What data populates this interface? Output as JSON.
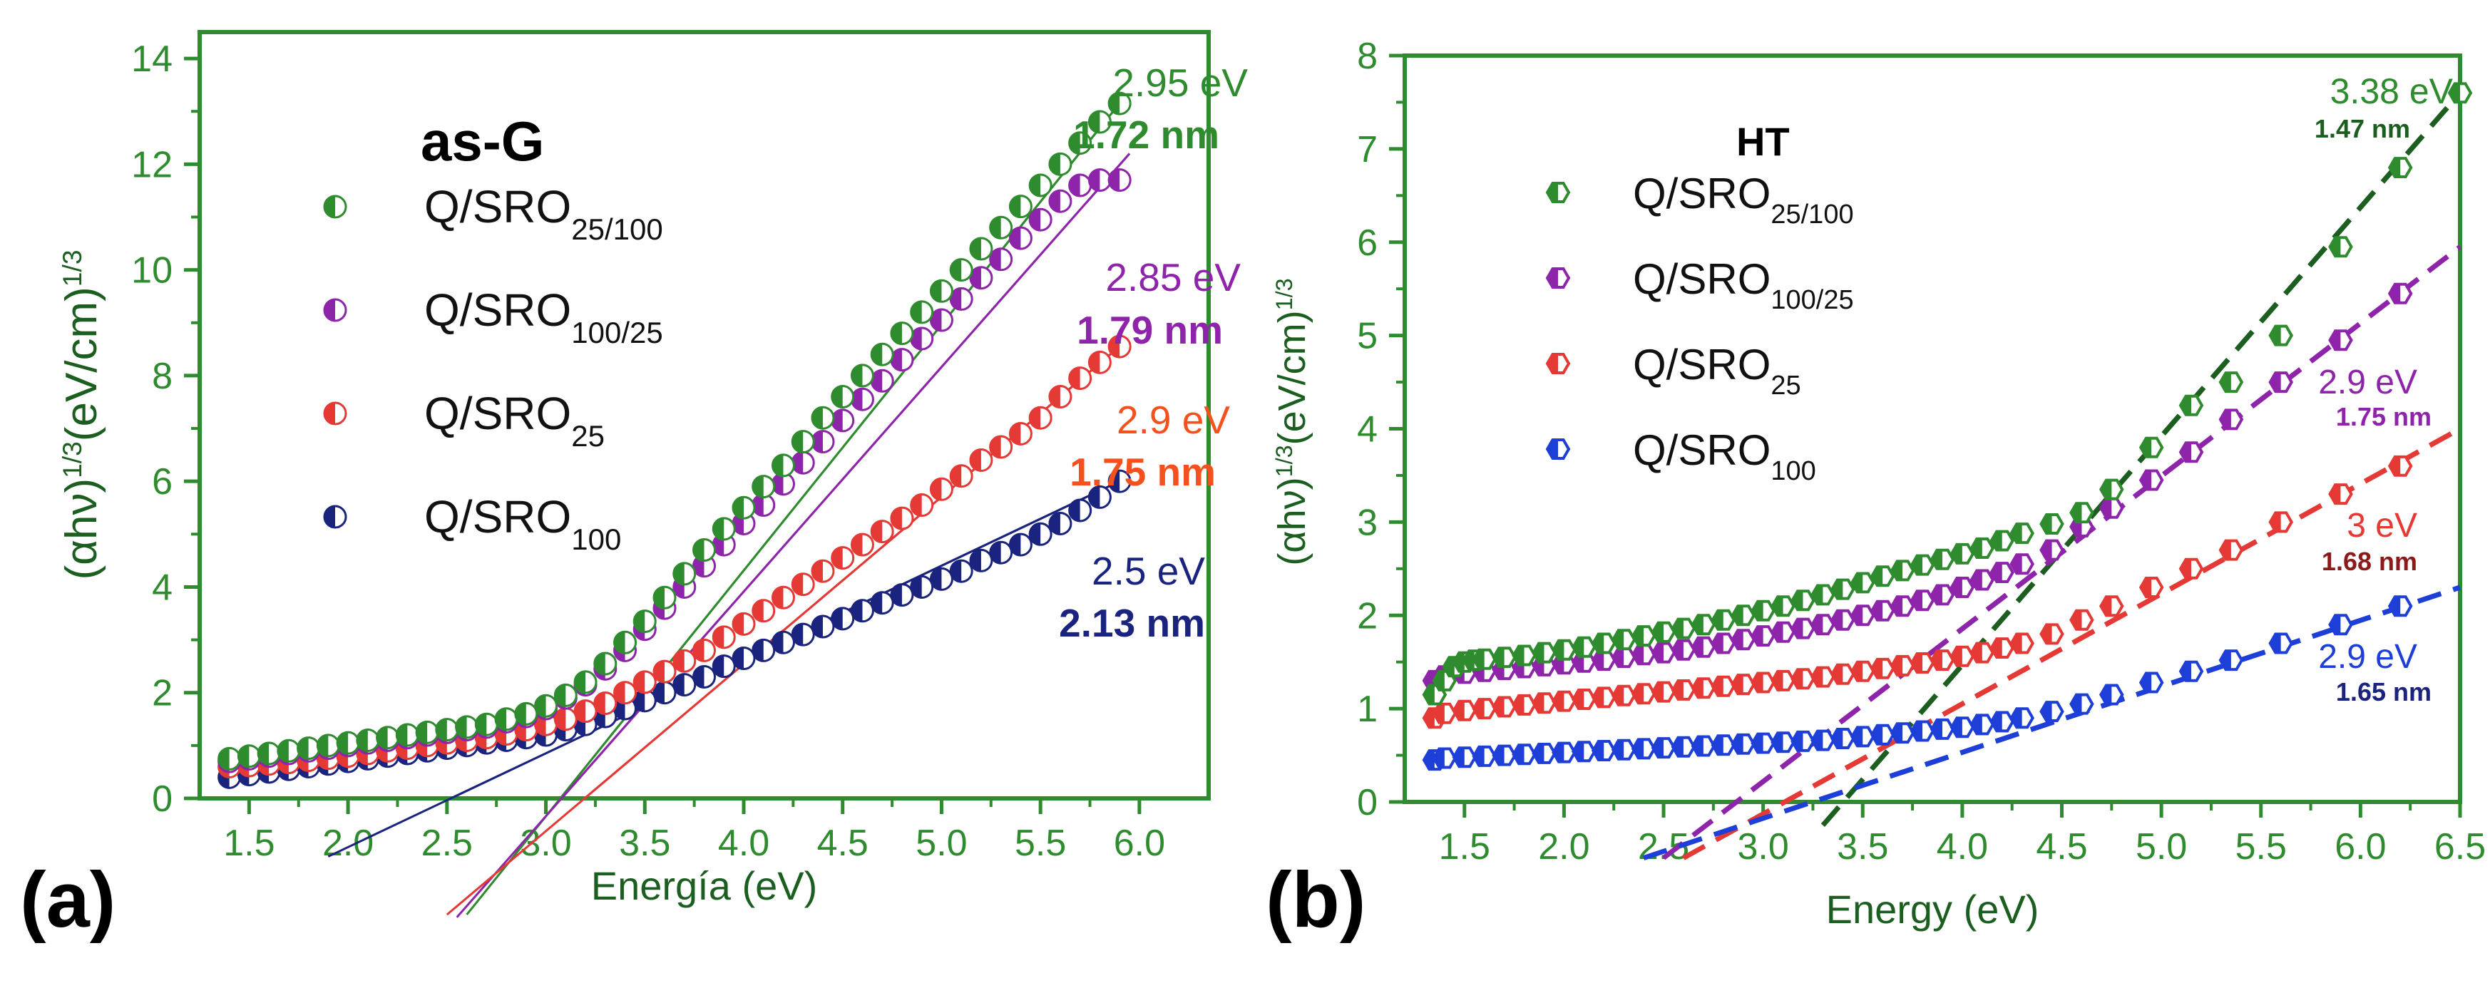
{
  "figure": {
    "panel_a_label": "(a)",
    "panel_b_label": "(b)"
  },
  "chart_data": [
    {
      "type": "scatter",
      "panel": "(a)",
      "title": "as-G",
      "xlabel": "Energía (eV)",
      "ylabel": "(αhν)1/3(eV/cm)1/3",
      "ylabel_parts": {
        "base": "(αhν)",
        "sup1": "1/3",
        "mid": "(eV/cm)",
        "sup2": "1/3"
      },
      "xlim": [
        1.25,
        6.35
      ],
      "ylim": [
        0,
        14.5
      ],
      "xticks": [
        1.5,
        2.0,
        2.5,
        3.0,
        3.5,
        4.0,
        4.5,
        5.0,
        5.5,
        6.0
      ],
      "xtick_labels": [
        "1.5",
        "2.0",
        "2.5",
        "3.0",
        "3.5",
        "4.0",
        "4.5",
        "5.0",
        "5.5",
        "6.0"
      ],
      "yticks": [
        0,
        2,
        4,
        6,
        8,
        10,
        12,
        14
      ],
      "ytick_labels": [
        "0",
        "2",
        "4",
        "6",
        "8",
        "10",
        "12",
        "14"
      ],
      "legend_position": "top-left",
      "axis_color": "#2e8b2e",
      "series": [
        {
          "name": "Q/SRO25/100",
          "label_base": "Q/SRO",
          "label_sub": "25/100",
          "color": "#2e8b2e",
          "x": [
            1.4,
            1.5,
            1.6,
            1.7,
            1.8,
            1.9,
            2.0,
            2.1,
            2.2,
            2.3,
            2.4,
            2.5,
            2.6,
            2.7,
            2.8,
            2.9,
            3.0,
            3.1,
            3.2,
            3.3,
            3.4,
            3.5,
            3.6,
            3.7,
            3.8,
            3.9,
            4.0,
            4.1,
            4.2,
            4.3,
            4.4,
            4.5,
            4.6,
            4.7,
            4.8,
            4.9,
            5.0,
            5.1,
            5.2,
            5.3,
            5.4,
            5.5,
            5.6,
            5.7,
            5.8,
            5.9
          ],
          "y": [
            0.75,
            0.8,
            0.85,
            0.9,
            0.95,
            1.0,
            1.05,
            1.1,
            1.15,
            1.2,
            1.25,
            1.3,
            1.35,
            1.4,
            1.5,
            1.6,
            1.75,
            1.95,
            2.2,
            2.55,
            2.95,
            3.35,
            3.8,
            4.25,
            4.7,
            5.1,
            5.5,
            5.9,
            6.3,
            6.75,
            7.2,
            7.6,
            8.0,
            8.4,
            8.8,
            9.2,
            9.6,
            10.0,
            10.4,
            10.8,
            11.2,
            11.6,
            12.0,
            12.4,
            12.8,
            13.15
          ]
        },
        {
          "name": "Q/SRO100/25",
          "label_base": "Q/SRO",
          "label_sub": "100/25",
          "color": "#8e24aa",
          "x": [
            1.4,
            1.5,
            1.6,
            1.7,
            1.8,
            1.9,
            2.0,
            2.1,
            2.2,
            2.3,
            2.4,
            2.5,
            2.6,
            2.7,
            2.8,
            2.9,
            3.0,
            3.1,
            3.2,
            3.3,
            3.4,
            3.5,
            3.6,
            3.7,
            3.8,
            3.9,
            4.0,
            4.1,
            4.2,
            4.3,
            4.4,
            4.5,
            4.6,
            4.7,
            4.8,
            4.9,
            5.0,
            5.1,
            5.2,
            5.3,
            5.4,
            5.5,
            5.6,
            5.7,
            5.8,
            5.9
          ],
          "y": [
            0.7,
            0.75,
            0.8,
            0.85,
            0.9,
            0.95,
            1.0,
            1.05,
            1.1,
            1.15,
            1.2,
            1.25,
            1.3,
            1.35,
            1.45,
            1.55,
            1.7,
            1.9,
            2.15,
            2.45,
            2.8,
            3.2,
            3.6,
            4.0,
            4.4,
            4.8,
            5.2,
            5.55,
            5.95,
            6.35,
            6.75,
            7.15,
            7.55,
            7.9,
            8.3,
            8.7,
            9.05,
            9.45,
            9.85,
            10.2,
            10.6,
            10.95,
            11.3,
            11.6,
            11.7,
            11.7
          ]
        },
        {
          "name": "Q/SRO25",
          "label_base": "Q/SRO",
          "label_sub": "25",
          "color": "#e53935",
          "x": [
            1.4,
            1.5,
            1.6,
            1.7,
            1.8,
            1.9,
            2.0,
            2.1,
            2.2,
            2.3,
            2.4,
            2.5,
            2.6,
            2.7,
            2.8,
            2.9,
            3.0,
            3.1,
            3.2,
            3.3,
            3.4,
            3.5,
            3.6,
            3.7,
            3.8,
            3.9,
            4.0,
            4.1,
            4.2,
            4.3,
            4.4,
            4.5,
            4.6,
            4.7,
            4.8,
            4.9,
            5.0,
            5.1,
            5.2,
            5.3,
            5.4,
            5.5,
            5.6,
            5.7,
            5.8,
            5.9
          ],
          "y": [
            0.6,
            0.62,
            0.65,
            0.68,
            0.72,
            0.76,
            0.8,
            0.85,
            0.9,
            0.95,
            1.0,
            1.05,
            1.1,
            1.15,
            1.22,
            1.3,
            1.4,
            1.5,
            1.65,
            1.8,
            2.0,
            2.2,
            2.4,
            2.6,
            2.8,
            3.05,
            3.3,
            3.55,
            3.8,
            4.05,
            4.3,
            4.55,
            4.8,
            5.05,
            5.3,
            5.55,
            5.85,
            6.1,
            6.4,
            6.65,
            6.9,
            7.2,
            7.6,
            7.95,
            8.25,
            8.55
          ]
        },
        {
          "name": "Q/SRO100",
          "label_base": "Q/SRO",
          "label_sub": "100",
          "color": "#1a237e",
          "x": [
            1.4,
            1.5,
            1.6,
            1.7,
            1.8,
            1.9,
            2.0,
            2.1,
            2.2,
            2.3,
            2.4,
            2.5,
            2.6,
            2.7,
            2.8,
            2.9,
            3.0,
            3.1,
            3.2,
            3.3,
            3.4,
            3.5,
            3.6,
            3.7,
            3.8,
            3.9,
            4.0,
            4.1,
            4.2,
            4.3,
            4.4,
            4.5,
            4.6,
            4.7,
            4.8,
            4.9,
            5.0,
            5.1,
            5.2,
            5.3,
            5.4,
            5.5,
            5.6,
            5.7,
            5.8,
            5.9
          ],
          "y": [
            0.4,
            0.45,
            0.5,
            0.55,
            0.6,
            0.65,
            0.7,
            0.75,
            0.8,
            0.85,
            0.9,
            0.95,
            1.0,
            1.05,
            1.1,
            1.15,
            1.2,
            1.3,
            1.4,
            1.55,
            1.7,
            1.85,
            2.0,
            2.15,
            2.3,
            2.5,
            2.65,
            2.8,
            2.95,
            3.1,
            3.25,
            3.4,
            3.55,
            3.7,
            3.85,
            4.0,
            4.15,
            4.3,
            4.5,
            4.65,
            4.8,
            5.0,
            5.2,
            5.45,
            5.7,
            6.0
          ]
        }
      ],
      "fit_lines": [
        {
          "color": "#2e8b2e",
          "x": [
            2.6,
            5.9
          ],
          "y": [
            -2.2,
            13.15
          ]
        },
        {
          "color": "#8e24aa",
          "x": [
            2.55,
            5.95
          ],
          "y": [
            -2.25,
            12.2
          ]
        },
        {
          "color": "#e53935",
          "x": [
            2.5,
            5.9
          ],
          "y": [
            -2.2,
            8.55
          ]
        },
        {
          "color": "#1a237e",
          "x": [
            1.9,
            5.9
          ],
          "y": [
            -1.1,
            6.0
          ]
        }
      ],
      "annotations": [
        {
          "text": "2.95 eV",
          "color": "#2e8b2e",
          "bold": false
        },
        {
          "text": "1.72 nm",
          "color": "#2e8b2e",
          "bold": true
        },
        {
          "text": "2.85 eV",
          "color": "#8e24aa",
          "bold": false
        },
        {
          "text": "1.79 nm",
          "color": "#8e24aa",
          "bold": true
        },
        {
          "text": "2.9 eV",
          "color": "#f4511e",
          "bold": false
        },
        {
          "text": "1.75 nm",
          "color": "#f4511e",
          "bold": true
        },
        {
          "text": "2.5 eV",
          "color": "#1a237e",
          "bold": false
        },
        {
          "text": "2.13 nm",
          "color": "#1a237e",
          "bold": true
        }
      ]
    },
    {
      "type": "scatter",
      "panel": "(b)",
      "title": "HT",
      "xlabel": "Energy (eV)",
      "ylabel": "(αhν)1/3(eV/cm)1/3",
      "ylabel_parts": {
        "base": "(αhν)",
        "sup1": "1/3",
        "mid": "(eV/cm)",
        "sup2": "1/3"
      },
      "xlim": [
        1.2,
        6.5
      ],
      "ylim": [
        0,
        8
      ],
      "xticks": [
        1.5,
        2.0,
        2.5,
        3.0,
        3.5,
        4.0,
        4.5,
        5.0,
        5.5,
        6.0,
        6.5
      ],
      "xtick_labels": [
        "1.5",
        "2.0",
        "2.5",
        "3.0",
        "3.5",
        "4.0",
        "4.5",
        "5.0",
        "5.5",
        "6.0",
        "6.5"
      ],
      "yticks": [
        0,
        1,
        2,
        3,
        4,
        5,
        6,
        7,
        8
      ],
      "ytick_labels": [
        "0",
        "1",
        "2",
        "3",
        "4",
        "5",
        "6",
        "7",
        "8"
      ],
      "legend_position": "top-left",
      "axis_color": "#2e8b2e",
      "series": [
        {
          "name": "Q/SRO25/100",
          "label_base": "Q/SRO",
          "label_sub": "25/100",
          "color": "#2e8b2e",
          "x": [
            1.35,
            1.4,
            1.45,
            1.5,
            1.55,
            1.6,
            1.7,
            1.8,
            1.9,
            2.0,
            2.1,
            2.2,
            2.3,
            2.4,
            2.5,
            2.6,
            2.7,
            2.8,
            2.9,
            3.0,
            3.1,
            3.2,
            3.3,
            3.4,
            3.5,
            3.6,
            3.7,
            3.8,
            3.9,
            4.0,
            4.1,
            4.2,
            4.3,
            4.45,
            4.6,
            4.75,
            4.95,
            5.15,
            5.35,
            5.6,
            5.9,
            6.2,
            6.5
          ],
          "y": [
            1.15,
            1.3,
            1.45,
            1.5,
            1.52,
            1.53,
            1.55,
            1.57,
            1.6,
            1.63,
            1.66,
            1.7,
            1.74,
            1.78,
            1.82,
            1.86,
            1.9,
            1.95,
            2.0,
            2.05,
            2.1,
            2.16,
            2.22,
            2.28,
            2.35,
            2.42,
            2.48,
            2.54,
            2.6,
            2.66,
            2.72,
            2.8,
            2.88,
            2.98,
            3.1,
            3.35,
            3.8,
            4.25,
            4.5,
            5.0,
            5.95,
            6.8,
            7.6
          ]
        },
        {
          "name": "Q/SRO100/25",
          "label_base": "Q/SRO",
          "label_sub": "100/25",
          "color": "#8e24aa",
          "x": [
            1.35,
            1.4,
            1.5,
            1.6,
            1.7,
            1.8,
            1.9,
            2.0,
            2.1,
            2.2,
            2.3,
            2.4,
            2.5,
            2.6,
            2.7,
            2.8,
            2.9,
            3.0,
            3.1,
            3.2,
            3.3,
            3.4,
            3.5,
            3.6,
            3.7,
            3.8,
            3.9,
            4.0,
            4.1,
            4.2,
            4.3,
            4.45,
            4.6,
            4.75,
            4.95,
            5.15,
            5.35,
            5.6,
            5.9,
            6.2
          ],
          "y": [
            1.3,
            1.35,
            1.38,
            1.4,
            1.42,
            1.44,
            1.46,
            1.48,
            1.5,
            1.52,
            1.55,
            1.58,
            1.6,
            1.63,
            1.66,
            1.7,
            1.74,
            1.78,
            1.82,
            1.86,
            1.9,
            1.95,
            2.0,
            2.05,
            2.1,
            2.16,
            2.22,
            2.3,
            2.38,
            2.46,
            2.55,
            2.7,
            2.95,
            3.15,
            3.45,
            3.75,
            4.1,
            4.5,
            4.95,
            5.45
          ]
        },
        {
          "name": "Q/SRO25",
          "label_base": "Q/SRO",
          "label_sub": "25",
          "color": "#e53935",
          "x": [
            1.35,
            1.4,
            1.5,
            1.6,
            1.7,
            1.8,
            1.9,
            2.0,
            2.1,
            2.2,
            2.3,
            2.4,
            2.5,
            2.6,
            2.7,
            2.8,
            2.9,
            3.0,
            3.1,
            3.2,
            3.3,
            3.4,
            3.5,
            3.6,
            3.7,
            3.8,
            3.9,
            4.0,
            4.1,
            4.2,
            4.3,
            4.45,
            4.6,
            4.75,
            4.95,
            5.15,
            5.35,
            5.6,
            5.9,
            6.2
          ],
          "y": [
            0.9,
            0.95,
            0.98,
            1.0,
            1.02,
            1.04,
            1.06,
            1.08,
            1.1,
            1.12,
            1.14,
            1.16,
            1.18,
            1.2,
            1.22,
            1.24,
            1.26,
            1.28,
            1.3,
            1.32,
            1.34,
            1.37,
            1.4,
            1.43,
            1.46,
            1.49,
            1.52,
            1.56,
            1.6,
            1.65,
            1.7,
            1.8,
            1.95,
            2.1,
            2.3,
            2.5,
            2.7,
            3.0,
            3.3,
            3.6
          ]
        },
        {
          "name": "Q/SRO100",
          "label_base": "Q/SRO",
          "label_sub": "100",
          "color": "#1e3ed8",
          "x": [
            1.35,
            1.4,
            1.5,
            1.6,
            1.7,
            1.8,
            1.9,
            2.0,
            2.1,
            2.2,
            2.3,
            2.4,
            2.5,
            2.6,
            2.7,
            2.8,
            2.9,
            3.0,
            3.1,
            3.2,
            3.3,
            3.4,
            3.5,
            3.6,
            3.7,
            3.8,
            3.9,
            4.0,
            4.1,
            4.2,
            4.3,
            4.45,
            4.6,
            4.75,
            4.95,
            5.15,
            5.35,
            5.6,
            5.9,
            6.2
          ],
          "y": [
            0.45,
            0.47,
            0.48,
            0.49,
            0.5,
            0.51,
            0.52,
            0.53,
            0.54,
            0.55,
            0.56,
            0.57,
            0.58,
            0.59,
            0.6,
            0.61,
            0.62,
            0.63,
            0.64,
            0.65,
            0.66,
            0.68,
            0.7,
            0.72,
            0.74,
            0.76,
            0.78,
            0.8,
            0.83,
            0.86,
            0.9,
            0.97,
            1.05,
            1.15,
            1.28,
            1.4,
            1.52,
            1.7,
            1.9,
            2.1
          ]
        }
      ],
      "fit_lines": [
        {
          "color": "#1b5e20",
          "x": [
            3.3,
            6.5
          ],
          "y": [
            -0.25,
            7.6
          ]
        },
        {
          "color": "#8e24aa",
          "x": [
            2.5,
            6.5
          ],
          "y": [
            -0.6,
            5.95
          ]
        },
        {
          "color": "#e53935",
          "x": [
            2.6,
            6.5
          ],
          "y": [
            -0.6,
            4.0
          ]
        },
        {
          "color": "#1e3ed8",
          "x": [
            2.4,
            6.5
          ],
          "y": [
            -0.6,
            2.3
          ]
        }
      ],
      "annotations": [
        {
          "text": "3.38 eV",
          "color": "#2e8b2e",
          "bold": false
        },
        {
          "text": "1.47 nm",
          "color": "#1b5e20",
          "bold": true
        },
        {
          "text": "2.9 eV",
          "color": "#8e24aa",
          "bold": false
        },
        {
          "text": "1.75 nm",
          "color": "#8e24aa",
          "bold": true
        },
        {
          "text": "3 eV",
          "color": "#e53935",
          "bold": false
        },
        {
          "text": "1.68 nm",
          "color": "#8b1a1a",
          "bold": true
        },
        {
          "text": "2.9 eV",
          "color": "#1e3ed8",
          "bold": false
        },
        {
          "text": "1.65 nm",
          "color": "#1a237e",
          "bold": true
        }
      ]
    }
  ]
}
